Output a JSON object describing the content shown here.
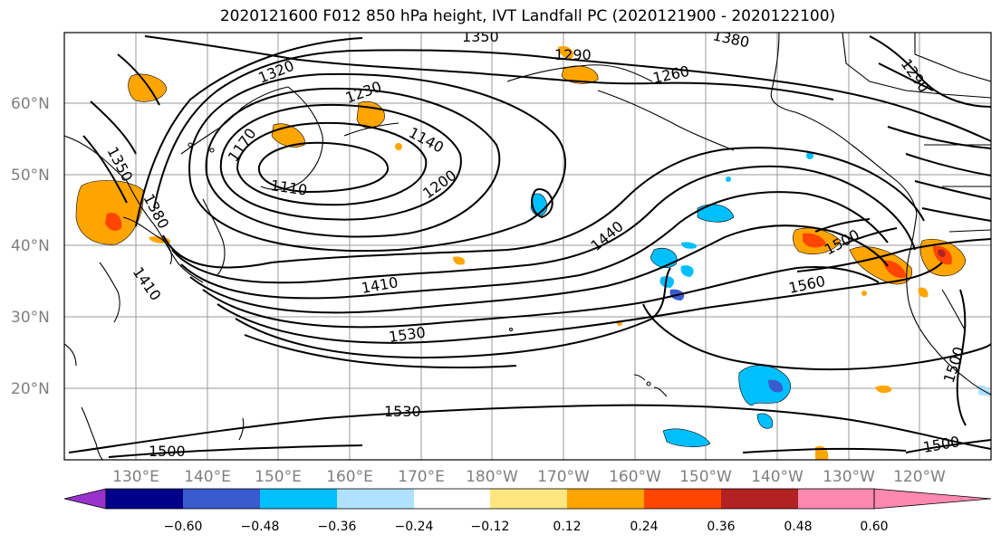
{
  "title": "2020121600 F012 850 hPa height, IVT Landfall PC (2020121900 - 2020122100)",
  "map": {
    "lat_labels": [
      "60°N",
      "50°N",
      "40°N",
      "30°N",
      "20°N"
    ],
    "lon_labels": [
      "130°E",
      "140°E",
      "150°E",
      "160°E",
      "170°E",
      "180°W",
      "170°W",
      "160°W",
      "150°W",
      "140°W",
      "130°W",
      "120°W"
    ],
    "contour_labels": [
      "1350",
      "1290",
      "1380",
      "1320",
      "1260",
      "1290",
      "1230",
      "1140",
      "1170",
      "1350",
      "1110",
      "1200",
      "1380",
      "1440",
      "1500",
      "1410",
      "1410",
      "1560",
      "1530",
      "1500",
      "1530",
      "1500",
      "1500"
    ]
  },
  "colorbar": {
    "tick_labels": [
      "−0.60",
      "−0.48",
      "−0.36",
      "−0.24",
      "−0.12",
      "0.12",
      "0.24",
      "0.36",
      "0.48",
      "0.60"
    ],
    "colors": [
      "#9932cc",
      "#00008b",
      "#3a5bcf",
      "#00bfff",
      "#b0e2ff",
      "#ffffff",
      "#ffe680",
      "#ffa500",
      "#ff4500",
      "#b22222",
      "#ff88b0"
    ]
  }
}
